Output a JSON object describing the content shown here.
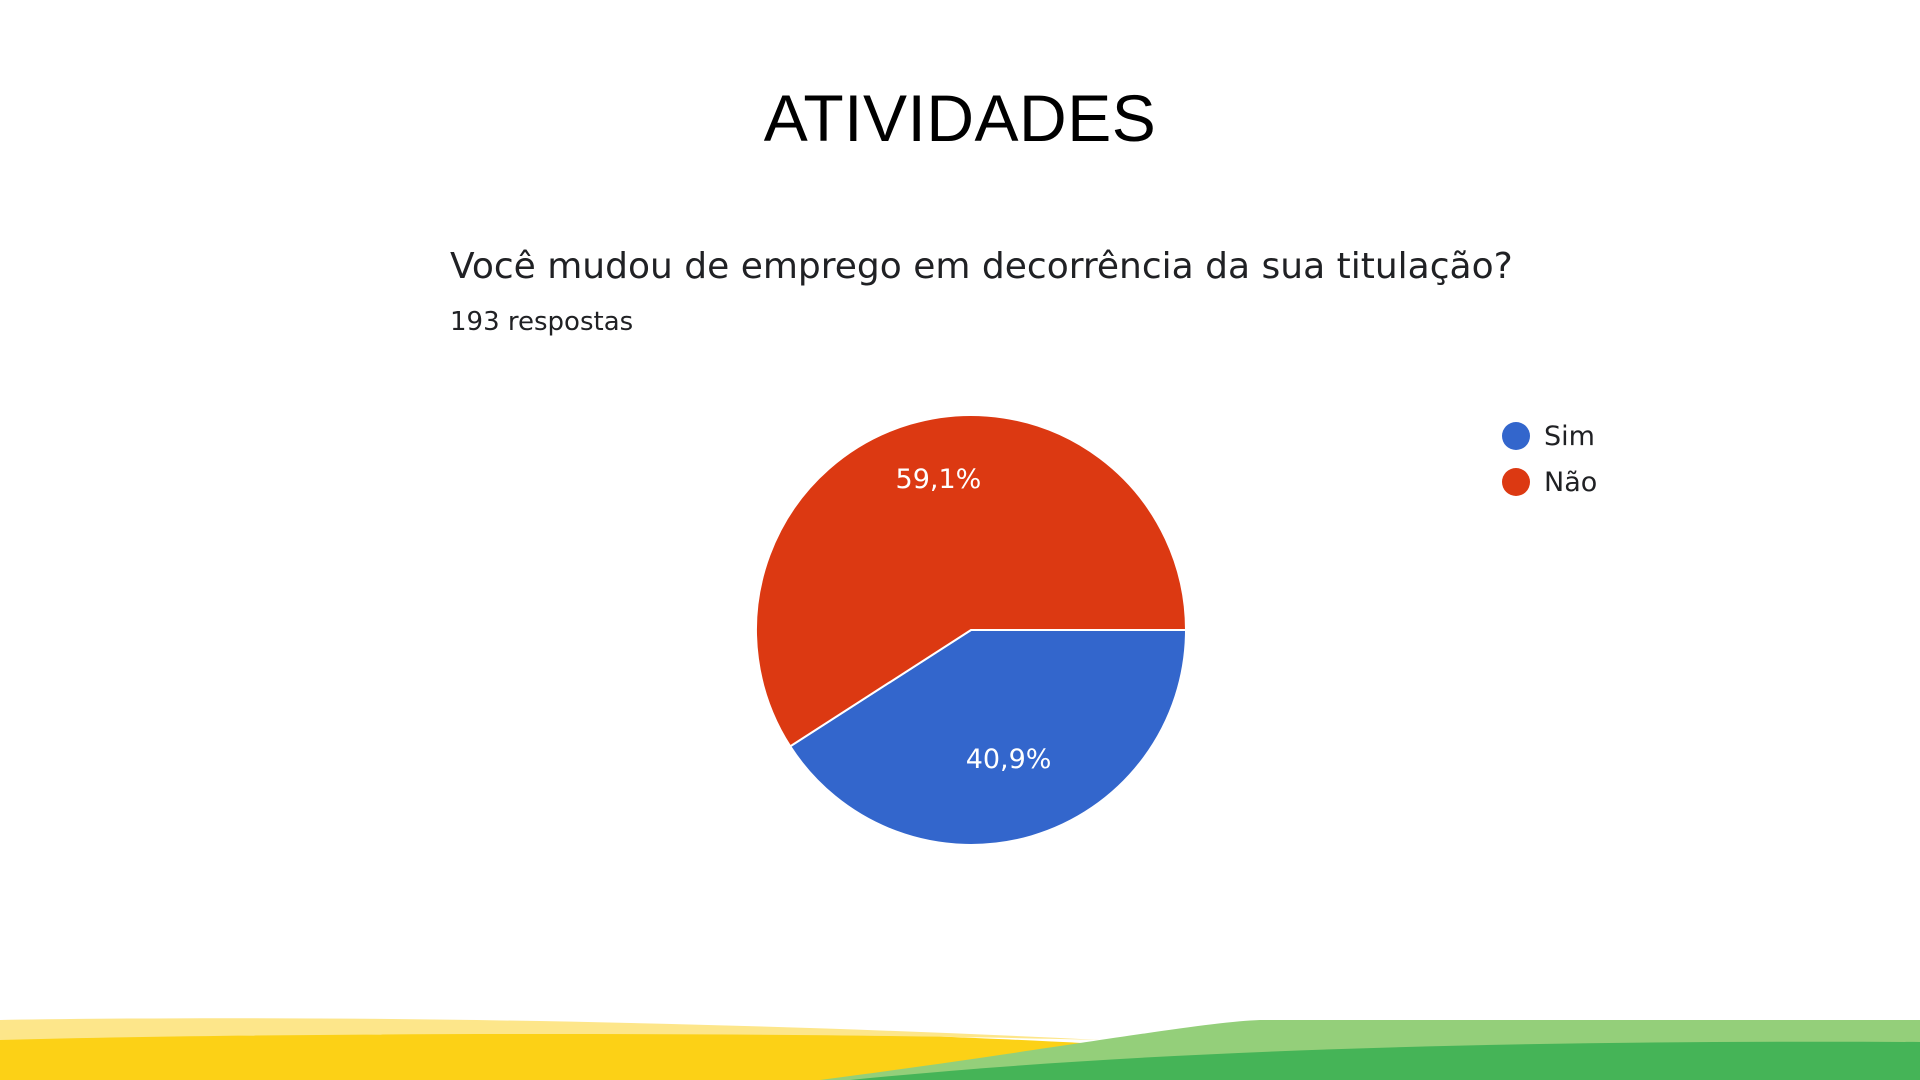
{
  "slide": {
    "title": "ATIVIDADES"
  },
  "chart_data": {
    "type": "pie",
    "title": "Você mudou de emprego em decorrência da sua titulação?",
    "subtitle": "193 respostas",
    "categories": [
      "Sim",
      "Não"
    ],
    "values": [
      40.9,
      59.1
    ],
    "labels": [
      "40,9%",
      "59,1%"
    ],
    "colors": [
      "#3366cc",
      "#dc3912"
    ],
    "legend_position": "top-right"
  },
  "footer": {
    "colors": [
      "#fdd20f",
      "#4cb85a"
    ]
  }
}
